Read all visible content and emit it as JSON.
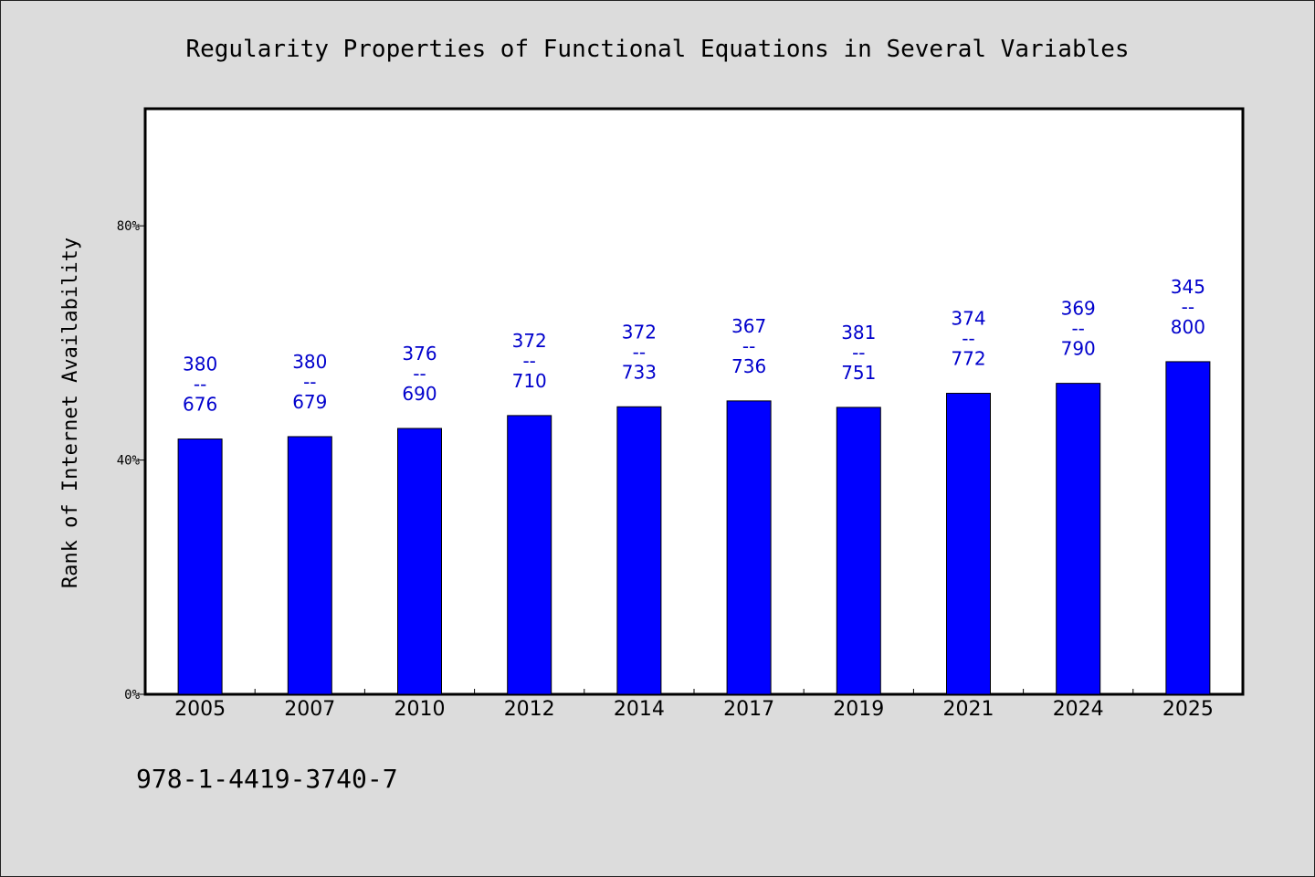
{
  "chart_data": {
    "type": "bar",
    "title": "Regularity Properties of Functional Equations in Several Variables",
    "ylabel": "Rank of Internet Availability",
    "xlabel": "",
    "categories": [
      "2005",
      "2007",
      "2010",
      "2012",
      "2014",
      "2017",
      "2019",
      "2021",
      "2024",
      "2025"
    ],
    "values": [
      43.6,
      44.0,
      45.4,
      47.6,
      49.1,
      50.1,
      49.0,
      51.4,
      53.1,
      56.8
    ],
    "data_labels": [
      {
        "top": "380",
        "sep": "--",
        "bottom": "676"
      },
      {
        "top": "380",
        "sep": "--",
        "bottom": "679"
      },
      {
        "top": "376",
        "sep": "--",
        "bottom": "690"
      },
      {
        "top": "372",
        "sep": "--",
        "bottom": "710"
      },
      {
        "top": "372",
        "sep": "--",
        "bottom": "733"
      },
      {
        "top": "367",
        "sep": "--",
        "bottom": "736"
      },
      {
        "top": "381",
        "sep": "--",
        "bottom": "751"
      },
      {
        "top": "374",
        "sep": "--",
        "bottom": "772"
      },
      {
        "top": "369",
        "sep": "--",
        "bottom": "790"
      },
      {
        "top": "345",
        "sep": "--",
        "bottom": "800"
      }
    ],
    "ylim": [
      0,
      100
    ],
    "yticks": [
      0,
      40,
      80
    ],
    "ytick_labels": [
      "0%",
      "40%",
      "80%"
    ],
    "grid": false,
    "legend": "none",
    "colors": {
      "bar": "#0000ff",
      "bar_edge": "#000000",
      "data_label": "#0000cc",
      "plot_bg": "#ffffff",
      "page_bg": "#dcdcdc"
    }
  },
  "footer": {
    "isbn": "978-1-4419-3740-7"
  }
}
